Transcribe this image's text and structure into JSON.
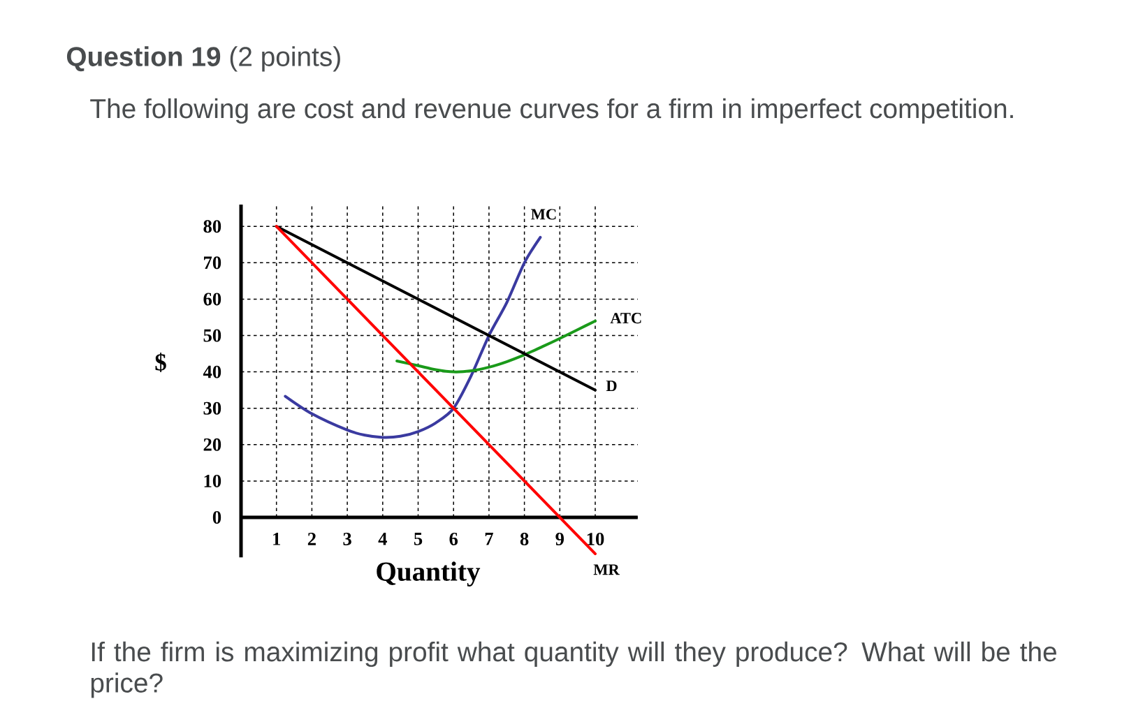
{
  "chart_data": {
    "type": "line",
    "title": "**Question 19** (2 points)",
    "subtitle": "The following are cost and revenue curves for a firm in imperfect competition.",
    "xlabel": "Quantity",
    "ylabel": "$",
    "annotations": [
      "If the firm is maximizing profit what quantity will they produce?  What will be the price?"
    ],
    "xlim": [
      0,
      11.2
    ],
    "ylim": [
      -11,
      86
    ],
    "xticks": [
      1,
      2,
      3,
      4,
      5,
      6,
      7,
      8,
      9,
      10
    ],
    "yticks": [
      0,
      10,
      20,
      30,
      40,
      50,
      60,
      70,
      80
    ],
    "grid": true,
    "series": [
      {
        "name": "MC",
        "color": "#3a3aa0",
        "x": [
          1.25,
          2,
          3,
          3.5,
          4,
          4.5,
          5,
          5.5,
          6,
          6.5,
          7,
          7.5,
          8,
          8.45
        ],
        "values": [
          33.3,
          28.5,
          24,
          22.6,
          22,
          22.3,
          23.6,
          26,
          30,
          39,
          50,
          59,
          70,
          77
        ]
      },
      {
        "name": "ATC",
        "color": "#1a9a1a",
        "x": [
          4.4,
          5,
          5.5,
          6,
          6.5,
          7,
          7.5,
          8,
          8.5,
          9,
          9.5,
          10
        ],
        "values": [
          43,
          41.7,
          40.6,
          40,
          40.3,
          41.3,
          42.8,
          44.7,
          46.9,
          49.2,
          51.6,
          54
        ]
      },
      {
        "name": "D",
        "color": "#000000",
        "x": [
          1,
          10
        ],
        "values": [
          80,
          35
        ]
      },
      {
        "name": "MR",
        "color": "#ff0000",
        "x": [
          1,
          10
        ],
        "values": [
          80,
          -10
        ]
      }
    ]
  }
}
